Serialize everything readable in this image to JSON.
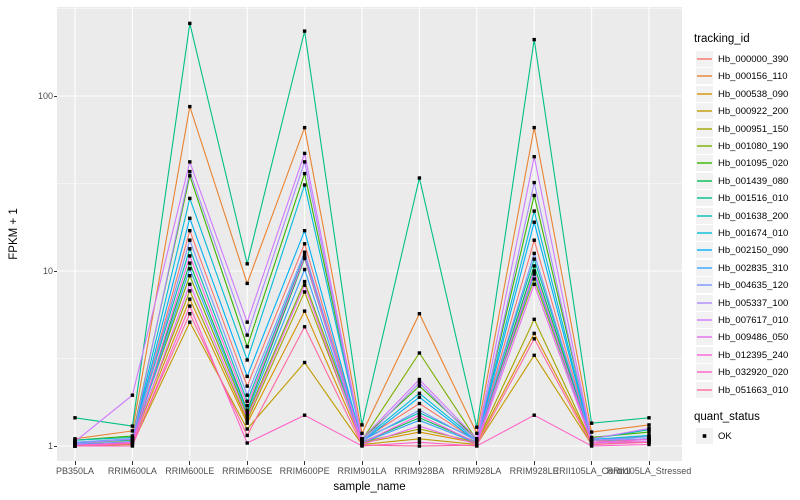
{
  "chart_data": {
    "type": "line",
    "title": "",
    "xlabel": "sample_name",
    "ylabel": "FPKM + 1",
    "y_scale": "log10",
    "y_ticks": [
      "1",
      "10",
      "100"
    ],
    "y_tick_values": [
      1,
      10,
      100
    ],
    "y_minor_gridline_values": [
      3.1623,
      31.623,
      316.23
    ],
    "ylim": [
      1,
      320
    ],
    "grid": "on",
    "legend_position": "right",
    "panel_bg": "#EBEBEB",
    "grid_color": "#FFFFFF",
    "point_color": "#000000",
    "categories": [
      "PB350LA",
      "RRIM600LA",
      "RRIM600LE",
      "RRIM600SE",
      "RRIM600PE",
      "RRIM901LA",
      "RRIM928BA",
      "RRIM928LA",
      "RRIM928LE",
      "RRII105LA_Control",
      "RRII105LA_Stressed"
    ],
    "legend_title": "tracking_id",
    "legend2_title": "quant_status",
    "legend2_items": [
      "OK"
    ],
    "series": [
      {
        "name": "Hb_000000_390",
        "color": "#F8766D",
        "values": [
          1.05,
          1.08,
          17,
          2.2,
          14.3,
          1.08,
          1.75,
          1.07,
          15,
          1.08,
          1.05
        ]
      },
      {
        "name": "Hb_000156_110",
        "color": "#EA8331",
        "values": [
          1.1,
          1.22,
          87,
          8.5,
          66,
          1.18,
          5.7,
          1.18,
          66,
          1.2,
          1.32
        ]
      },
      {
        "name": "Hb_000538_090",
        "color": "#D89000",
        "values": [
          1.0,
          1.05,
          6.9,
          1.35,
          5.9,
          1.04,
          1.2,
          1.04,
          4.4,
          1.05,
          1.1
        ]
      },
      {
        "name": "Hb_000922_200",
        "color": "#C09B00",
        "values": [
          1.0,
          1.02,
          5.1,
          1.25,
          3.0,
          1.02,
          1.1,
          1.02,
          3.3,
          1.02,
          1.06
        ]
      },
      {
        "name": "Hb_000951_150",
        "color": "#A3A500",
        "values": [
          1.04,
          1.08,
          7.7,
          1.4,
          7.6,
          1.05,
          1.25,
          1.05,
          5.3,
          1.05,
          1.1
        ]
      },
      {
        "name": "Hb_001080_190",
        "color": "#7CAE00",
        "values": [
          1.02,
          1.1,
          9.4,
          1.5,
          8.7,
          1.08,
          3.4,
          1.08,
          9.0,
          1.08,
          1.14
        ]
      },
      {
        "name": "Hb_001095_020",
        "color": "#39B600",
        "values": [
          1.08,
          1.14,
          35,
          3.7,
          36,
          1.1,
          2.2,
          1.1,
          27,
          1.12,
          1.2
        ]
      },
      {
        "name": "Hb_001439_080",
        "color": "#00BB4E",
        "values": [
          1.04,
          1.09,
          11.1,
          1.6,
          11.8,
          1.05,
          1.45,
          1.05,
          10.7,
          1.08,
          1.1
        ]
      },
      {
        "name": "Hb_001516_010",
        "color": "#00C087",
        "values": [
          1.45,
          1.3,
          260,
          11,
          235,
          1.32,
          34,
          1.28,
          210,
          1.35,
          1.45
        ]
      },
      {
        "name": "Hb_001638_200",
        "color": "#00C0B2",
        "values": [
          1.08,
          1.12,
          13.4,
          1.8,
          12.3,
          1.09,
          1.55,
          1.09,
          11.7,
          1.1,
          1.24
        ]
      },
      {
        "name": "Hb_001674_010",
        "color": "#00BCD8",
        "values": [
          1.05,
          1.1,
          26,
          3.1,
          31,
          1.08,
          2.0,
          1.08,
          22,
          1.09,
          1.15
        ]
      },
      {
        "name": "Hb_002150_090",
        "color": "#00B0F6",
        "values": [
          1.04,
          1.09,
          20,
          2.5,
          17,
          1.06,
          1.9,
          1.06,
          19,
          1.08,
          1.1
        ]
      },
      {
        "name": "Hb_002835_310",
        "color": "#35A2FF",
        "values": [
          1.02,
          1.06,
          10.3,
          1.55,
          10.2,
          1.04,
          1.4,
          1.04,
          9.6,
          1.05,
          1.09
        ]
      },
      {
        "name": "Hb_004635_120",
        "color": "#7997FF",
        "values": [
          1.05,
          1.1,
          15,
          1.95,
          12.8,
          1.07,
          1.6,
          1.07,
          12.6,
          1.08,
          1.13
        ]
      },
      {
        "name": "Hb_005337_100",
        "color": "#AC88FF",
        "values": [
          1.03,
          1.1,
          37,
          4.3,
          42,
          1.06,
          2.3,
          1.06,
          32,
          1.08,
          1.1
        ]
      },
      {
        "name": "Hb_007617_010",
        "color": "#CF78FF",
        "values": [
          1.06,
          1.95,
          42,
          5.1,
          47,
          1.1,
          2.4,
          1.1,
          45,
          1.1,
          1.26
        ]
      },
      {
        "name": "Hb_009486_050",
        "color": "#E76BF3",
        "values": [
          1.0,
          1.04,
          8.4,
          1.45,
          8.3,
          1.02,
          1.3,
          1.02,
          8.4,
          1.04,
          1.06
        ]
      },
      {
        "name": "Hb_012395_240",
        "color": "#FA62DB",
        "values": [
          1.01,
          1.05,
          12.2,
          1.7,
          12.0,
          1.04,
          1.5,
          1.04,
          10.0,
          1.05,
          1.09
        ]
      },
      {
        "name": "Hb_032920_020",
        "color": "#FF61C7",
        "values": [
          1.0,
          1.0,
          6.3,
          1.04,
          1.5,
          1.0,
          1.05,
          1.0,
          1.5,
          1.0,
          1.02
        ]
      },
      {
        "name": "Hb_051663_010",
        "color": "#FF689E",
        "values": [
          1.0,
          1.03,
          5.7,
          1.15,
          4.8,
          1.01,
          1.0,
          1.01,
          4.1,
          1.02,
          1.05
        ]
      }
    ]
  },
  "colors": {
    "panel_bg": "#EBEBEB",
    "grid": "#FFFFFF",
    "tick_text": "#4D4D4D",
    "axis_text": "#000000",
    "legend_key_bg": "#F2F2F2"
  }
}
